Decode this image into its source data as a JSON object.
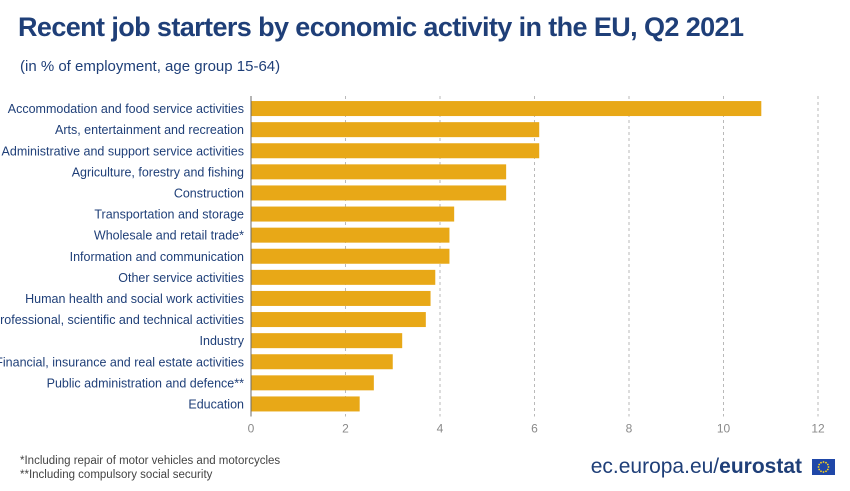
{
  "header": {
    "title": "Recent job starters by economic activity in the EU, Q2 2021",
    "subtitle": "(in % of employment, age group 15-64)"
  },
  "chart_data": {
    "type": "bar",
    "orientation": "horizontal",
    "categories": [
      "Accommodation and food service activities",
      "Arts, entertainment and recreation",
      "Administrative and support service activities",
      "Agriculture, forestry and fishing",
      "Construction",
      "Transportation and storage",
      "Wholesale and retail trade*",
      "Information and communication",
      "Other service activities",
      "Human health and social work activities",
      "Professional, scientific and technical activities",
      "Industry",
      "Financial, insurance and real estate activities",
      "Public administration and defence**",
      "Education"
    ],
    "values": [
      10.8,
      6.1,
      6.1,
      5.4,
      5.4,
      4.3,
      4.2,
      4.2,
      3.9,
      3.8,
      3.7,
      3.2,
      3.0,
      2.6,
      2.3
    ],
    "xlim": [
      0,
      12
    ],
    "xticks": [
      "0",
      "2",
      "4",
      "6",
      "8",
      "10",
      "12"
    ],
    "grid": "vertical dashed",
    "bar_color": "#e8a817",
    "text_color": "#1f3f78"
  },
  "footnotes": [
    "*Including repair of motor vehicles and motorcycles",
    "**Including compulsory social security"
  ],
  "brand": {
    "prefix": "ec.europa.eu/",
    "name": "eurostat"
  },
  "logo": {
    "icon": "eu-flag-icon",
    "color": "#1f47a8"
  }
}
